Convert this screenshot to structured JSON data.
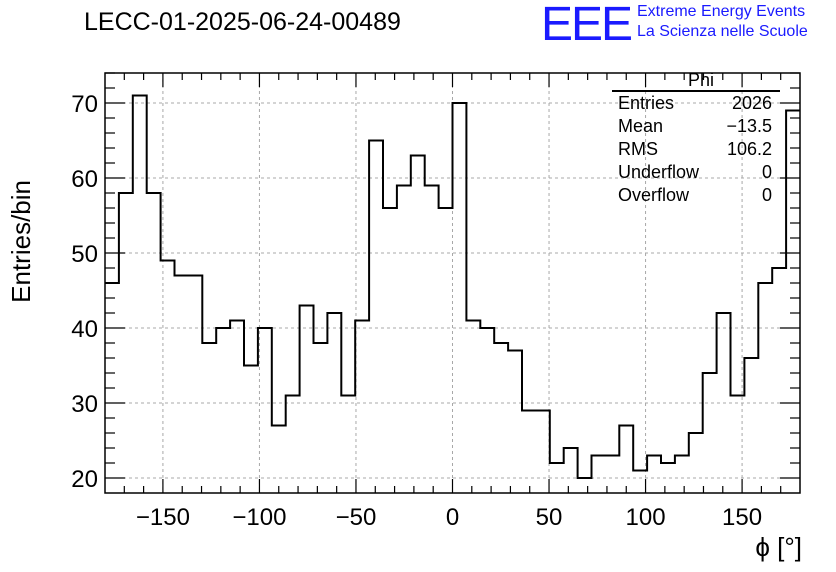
{
  "title": "LECC-01-2025-06-24-00489",
  "logo": {
    "mark": "EEE",
    "line1": "Extreme Energy Events",
    "line2": "La Scienza nelle Scuole",
    "color": "#1a1aff"
  },
  "stats": {
    "name": "Phi",
    "rows": [
      {
        "label": "Entries",
        "value": "2026"
      },
      {
        "label": "Mean",
        "value": "−13.5"
      },
      {
        "label": "RMS",
        "value": "106.2"
      },
      {
        "label": "Underflow",
        "value": "0"
      },
      {
        "label": "Overflow",
        "value": "0"
      }
    ]
  },
  "chart_data": {
    "type": "bar",
    "style": "step-histogram",
    "xlabel": "ϕ [°]",
    "ylabel": "Entries/bin",
    "xlim": [
      -180,
      180
    ],
    "ylim": [
      18,
      74
    ],
    "xticks": [
      -150,
      -100,
      -50,
      0,
      50,
      100,
      150
    ],
    "yticks": [
      20,
      30,
      40,
      50,
      60,
      70
    ],
    "xtick_labels": [
      "−150",
      "−100",
      "−50",
      "0",
      "50",
      "100",
      "150"
    ],
    "ytick_labels": [
      "20",
      "30",
      "40",
      "50",
      "60",
      "70"
    ],
    "grid": true,
    "bin_width": 7.2,
    "values": [
      46,
      58,
      71,
      58,
      49,
      47,
      47,
      38,
      40,
      41,
      35,
      40,
      27,
      31,
      43,
      38,
      42,
      31,
      41,
      65,
      56,
      59,
      63,
      59,
      56,
      70,
      41,
      40,
      38,
      37,
      29,
      29,
      22,
      24,
      20,
      23,
      23,
      27,
      21,
      23,
      22,
      23,
      26,
      34,
      42,
      31,
      36,
      46,
      48,
      69
    ]
  }
}
